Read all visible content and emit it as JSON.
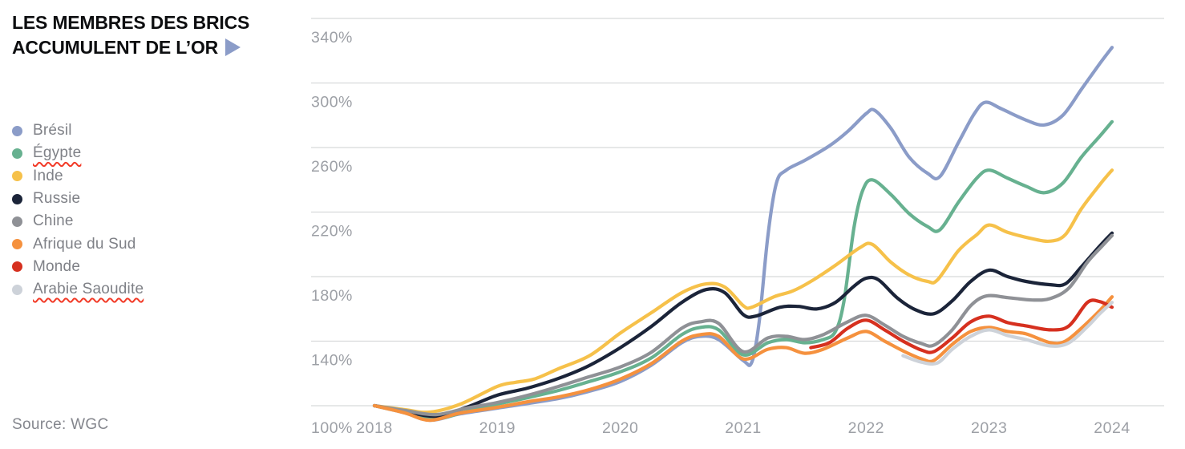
{
  "title": {
    "line1": "LES MEMBRES DES BRICS",
    "line2": "ACCUMULENT DE L’OR"
  },
  "source_label": "Source: WGC",
  "accent_color": "#8b9cc8",
  "spellcheck_color": "#f23b28",
  "legend": [
    {
      "label": "Brésil",
      "color": "#8b9cc8",
      "spellcheck_underline": false
    },
    {
      "label": "Égypte",
      "color": "#67b190",
      "spellcheck_underline": true
    },
    {
      "label": "Inde",
      "color": "#f6c14a",
      "spellcheck_underline": false
    },
    {
      "label": "Russie",
      "color": "#1b2439",
      "spellcheck_underline": false
    },
    {
      "label": "Chine",
      "color": "#8f9196",
      "spellcheck_underline": false
    },
    {
      "label": "Afrique du Sud",
      "color": "#f5913e",
      "spellcheck_underline": false
    },
    {
      "label": "Monde",
      "color": "#d6301f",
      "spellcheck_underline": false
    },
    {
      "label": "Arabie Saoudite",
      "color": "#cdd2d9",
      "spellcheck_underline": true
    }
  ],
  "chart_data": {
    "type": "line",
    "title": "LES MEMBRES DES BRICS ACCUMULENT DE L'OR",
    "xlabel": "",
    "ylabel": "",
    "ytick_suffix": "%",
    "yticks": [
      100,
      140,
      180,
      220,
      260,
      300,
      340
    ],
    "ylim": [
      88,
      348
    ],
    "xticks": [
      2018,
      2019,
      2020,
      2021,
      2022,
      2023,
      2024
    ],
    "xlim": [
      2018,
      2024
    ],
    "grid": "horizontal",
    "legend_position": "left",
    "line_width": 4.2,
    "grid_color": "#d8d9db",
    "tick_label_color": "#9da0a6",
    "series": [
      {
        "name": "Brésil",
        "color": "#8b9cc8",
        "points": [
          [
            2018,
            100
          ],
          [
            2018.25,
            95.5
          ],
          [
            2018.45,
            91
          ],
          [
            2018.7,
            95
          ],
          [
            2019,
            98.5
          ],
          [
            2019.5,
            104.5
          ],
          [
            2019.75,
            109
          ],
          [
            2020,
            115
          ],
          [
            2020.25,
            125
          ],
          [
            2020.5,
            139
          ],
          [
            2020.65,
            143
          ],
          [
            2020.8,
            141
          ],
          [
            2021.0,
            128
          ],
          [
            2021.07,
            127
          ],
          [
            2021.13,
            152
          ],
          [
            2021.2,
            205
          ],
          [
            2021.27,
            238
          ],
          [
            2021.35,
            246
          ],
          [
            2021.5,
            252
          ],
          [
            2021.7,
            261
          ],
          [
            2021.85,
            270
          ],
          [
            2022.0,
            281
          ],
          [
            2022.07,
            283
          ],
          [
            2022.2,
            272
          ],
          [
            2022.35,
            254
          ],
          [
            2022.5,
            244
          ],
          [
            2022.6,
            242
          ],
          [
            2022.75,
            263
          ],
          [
            2022.88,
            281
          ],
          [
            2022.97,
            288
          ],
          [
            2023.1,
            284
          ],
          [
            2023.3,
            277
          ],
          [
            2023.45,
            274
          ],
          [
            2023.6,
            280
          ],
          [
            2023.75,
            296
          ],
          [
            2023.9,
            312
          ],
          [
            2024,
            322
          ]
        ]
      },
      {
        "name": "Égypte",
        "color": "#67b190",
        "points": [
          [
            2018,
            100
          ],
          [
            2018.25,
            95.8
          ],
          [
            2018.5,
            92
          ],
          [
            2018.75,
            96.5
          ],
          [
            2019,
            101
          ],
          [
            2019.25,
            105
          ],
          [
            2019.5,
            109.5
          ],
          [
            2019.75,
            115
          ],
          [
            2020,
            121
          ],
          [
            2020.25,
            129.5
          ],
          [
            2020.5,
            144
          ],
          [
            2020.65,
            148.5
          ],
          [
            2020.8,
            147
          ],
          [
            2021,
            131.5
          ],
          [
            2021.2,
            139
          ],
          [
            2021.35,
            141
          ],
          [
            2021.5,
            139
          ],
          [
            2021.65,
            141
          ],
          [
            2021.75,
            146
          ],
          [
            2021.82,
            165
          ],
          [
            2021.9,
            210
          ],
          [
            2021.97,
            233
          ],
          [
            2022.05,
            240
          ],
          [
            2022.2,
            231
          ],
          [
            2022.35,
            219
          ],
          [
            2022.5,
            211
          ],
          [
            2022.6,
            209
          ],
          [
            2022.75,
            226
          ],
          [
            2022.9,
            241
          ],
          [
            2023.0,
            246
          ],
          [
            2023.15,
            241
          ],
          [
            2023.3,
            236
          ],
          [
            2023.45,
            232
          ],
          [
            2023.6,
            238
          ],
          [
            2023.75,
            254
          ],
          [
            2023.9,
            267
          ],
          [
            2024,
            276
          ]
        ]
      },
      {
        "name": "Inde",
        "color": "#f6c14a",
        "points": [
          [
            2018,
            100
          ],
          [
            2018.25,
            97.5
          ],
          [
            2018.45,
            96
          ],
          [
            2018.7,
            101
          ],
          [
            2019,
            112
          ],
          [
            2019.15,
            114.5
          ],
          [
            2019.3,
            116.5
          ],
          [
            2019.5,
            123
          ],
          [
            2019.75,
            131
          ],
          [
            2020,
            145
          ],
          [
            2020.25,
            157.5
          ],
          [
            2020.5,
            170
          ],
          [
            2020.7,
            175.5
          ],
          [
            2020.85,
            173.5
          ],
          [
            2021.0,
            162
          ],
          [
            2021.07,
            161
          ],
          [
            2021.25,
            167.5
          ],
          [
            2021.4,
            171
          ],
          [
            2021.55,
            177
          ],
          [
            2021.75,
            187
          ],
          [
            2021.95,
            198
          ],
          [
            2022.05,
            200
          ],
          [
            2022.2,
            189
          ],
          [
            2022.35,
            181
          ],
          [
            2022.5,
            177
          ],
          [
            2022.58,
            178
          ],
          [
            2022.75,
            196
          ],
          [
            2022.9,
            206
          ],
          [
            2023.0,
            212
          ],
          [
            2023.15,
            207.5
          ],
          [
            2023.35,
            203.5
          ],
          [
            2023.5,
            202
          ],
          [
            2023.62,
            206
          ],
          [
            2023.75,
            222
          ],
          [
            2023.9,
            237
          ],
          [
            2024,
            246
          ]
        ]
      },
      {
        "name": "Russie",
        "color": "#1b2439",
        "points": [
          [
            2018,
            100
          ],
          [
            2018.25,
            96.5
          ],
          [
            2018.5,
            93.5
          ],
          [
            2018.75,
            99
          ],
          [
            2019,
            106.5
          ],
          [
            2019.25,
            111
          ],
          [
            2019.5,
            117
          ],
          [
            2019.75,
            125
          ],
          [
            2020,
            136
          ],
          [
            2020.25,
            149
          ],
          [
            2020.5,
            164
          ],
          [
            2020.7,
            172
          ],
          [
            2020.85,
            170
          ],
          [
            2021.0,
            156.5
          ],
          [
            2021.1,
            155.5
          ],
          [
            2021.3,
            161
          ],
          [
            2021.45,
            161.5
          ],
          [
            2021.6,
            160
          ],
          [
            2021.75,
            164
          ],
          [
            2021.9,
            174
          ],
          [
            2022.0,
            179
          ],
          [
            2022.1,
            178
          ],
          [
            2022.25,
            167
          ],
          [
            2022.4,
            159.5
          ],
          [
            2022.55,
            157
          ],
          [
            2022.7,
            165
          ],
          [
            2022.85,
            177
          ],
          [
            2023.0,
            184
          ],
          [
            2023.15,
            180
          ],
          [
            2023.3,
            177
          ],
          [
            2023.5,
            175
          ],
          [
            2023.62,
            175.5
          ],
          [
            2023.75,
            186
          ],
          [
            2023.9,
            199
          ],
          [
            2024,
            207
          ]
        ]
      },
      {
        "name": "Chine",
        "color": "#8f9196",
        "points": [
          [
            2018,
            100
          ],
          [
            2018.25,
            97
          ],
          [
            2018.5,
            94.5
          ],
          [
            2018.75,
            98.5
          ],
          [
            2019,
            102
          ],
          [
            2019.25,
            106.5
          ],
          [
            2019.5,
            112
          ],
          [
            2019.75,
            118
          ],
          [
            2020,
            124
          ],
          [
            2020.25,
            133
          ],
          [
            2020.5,
            148
          ],
          [
            2020.65,
            152
          ],
          [
            2020.8,
            151
          ],
          [
            2021,
            133.5
          ],
          [
            2021.2,
            142
          ],
          [
            2021.35,
            143
          ],
          [
            2021.5,
            141
          ],
          [
            2021.65,
            144
          ],
          [
            2021.85,
            152
          ],
          [
            2022.0,
            156
          ],
          [
            2022.15,
            150
          ],
          [
            2022.3,
            143
          ],
          [
            2022.45,
            138.5
          ],
          [
            2022.55,
            137.5
          ],
          [
            2022.7,
            147
          ],
          [
            2022.85,
            162
          ],
          [
            2022.98,
            168
          ],
          [
            2023.15,
            167
          ],
          [
            2023.35,
            165.5
          ],
          [
            2023.5,
            166.5
          ],
          [
            2023.65,
            173
          ],
          [
            2023.8,
            189
          ],
          [
            2023.92,
            199
          ],
          [
            2024,
            205.5
          ]
        ]
      },
      {
        "name": "Afrique du Sud",
        "color": "#f5913e",
        "points": [
          [
            2018,
            100
          ],
          [
            2018.25,
            95.5
          ],
          [
            2018.45,
            91
          ],
          [
            2018.7,
            95.5
          ],
          [
            2019,
            99
          ],
          [
            2019.25,
            102.5
          ],
          [
            2019.5,
            105.5
          ],
          [
            2019.75,
            110
          ],
          [
            2020,
            116.5
          ],
          [
            2020.25,
            126
          ],
          [
            2020.5,
            140
          ],
          [
            2020.65,
            144
          ],
          [
            2020.8,
            143
          ],
          [
            2021,
            129
          ],
          [
            2021.2,
            135
          ],
          [
            2021.35,
            136
          ],
          [
            2021.5,
            132.5
          ],
          [
            2021.65,
            135
          ],
          [
            2021.85,
            142
          ],
          [
            2022.0,
            146
          ],
          [
            2022.15,
            140
          ],
          [
            2022.3,
            134
          ],
          [
            2022.45,
            129
          ],
          [
            2022.55,
            128
          ],
          [
            2022.7,
            138
          ],
          [
            2022.85,
            146
          ],
          [
            2023.0,
            148.5
          ],
          [
            2023.15,
            146
          ],
          [
            2023.3,
            144.5
          ],
          [
            2023.5,
            139
          ],
          [
            2023.62,
            140
          ],
          [
            2023.75,
            148
          ],
          [
            2023.9,
            159
          ],
          [
            2024,
            167.5
          ]
        ]
      },
      {
        "name": "Monde",
        "color": "#d6301f",
        "points": [
          [
            2021.55,
            136
          ],
          [
            2021.7,
            139
          ],
          [
            2021.85,
            148
          ],
          [
            2022.0,
            153
          ],
          [
            2022.15,
            147
          ],
          [
            2022.3,
            140
          ],
          [
            2022.45,
            134.5
          ],
          [
            2022.55,
            133.5
          ],
          [
            2022.7,
            142
          ],
          [
            2022.85,
            152
          ],
          [
            2023.0,
            155.5
          ],
          [
            2023.15,
            151.5
          ],
          [
            2023.3,
            149.5
          ],
          [
            2023.5,
            147
          ],
          [
            2023.65,
            149.5
          ],
          [
            2023.8,
            164
          ],
          [
            2023.9,
            164.5
          ],
          [
            2024,
            161
          ]
        ]
      },
      {
        "name": "Arabie Saoudite",
        "color": "#cdd2d9",
        "points": [
          [
            2022.3,
            131
          ],
          [
            2022.45,
            127
          ],
          [
            2022.58,
            126.5
          ],
          [
            2022.7,
            135
          ],
          [
            2022.85,
            143
          ],
          [
            2023.0,
            147
          ],
          [
            2023.15,
            143.5
          ],
          [
            2023.3,
            141
          ],
          [
            2023.5,
            137
          ],
          [
            2023.65,
            139
          ],
          [
            2023.8,
            149
          ],
          [
            2023.9,
            157
          ],
          [
            2024,
            164
          ]
        ]
      }
    ]
  }
}
